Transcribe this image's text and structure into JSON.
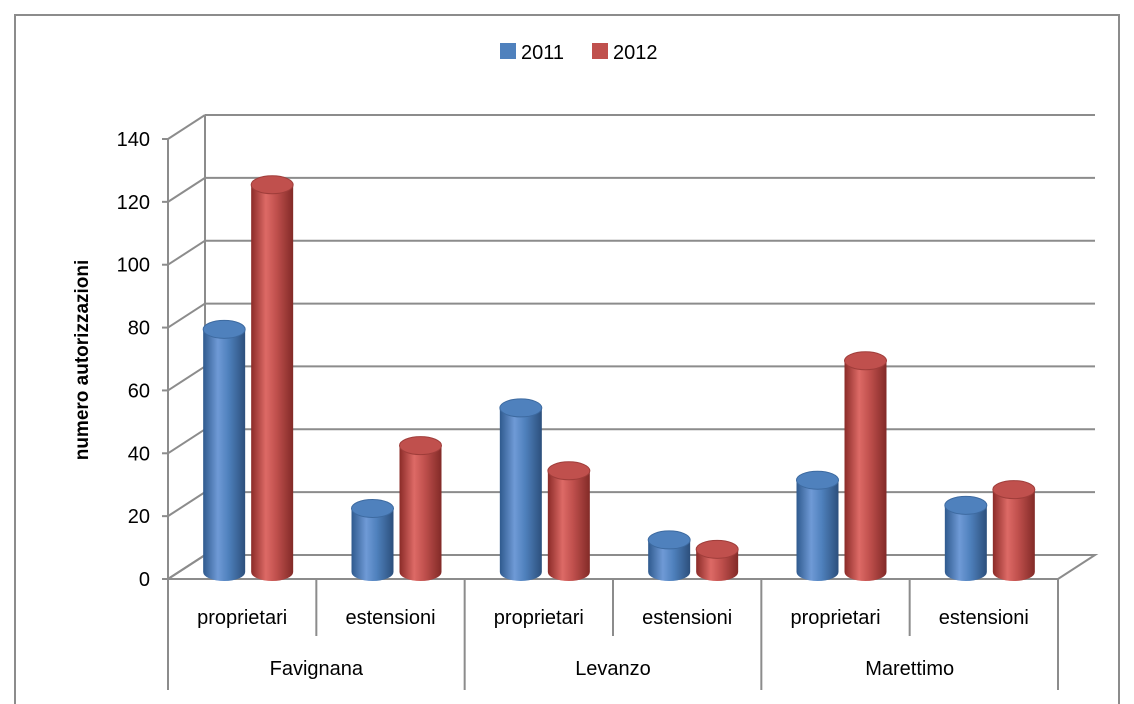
{
  "chart_data": {
    "type": "bar",
    "style": "3d-cylinder",
    "ylabel": "numero autorizzazioni",
    "ylim": [
      0,
      140
    ],
    "yticks": [
      "0",
      "20",
      "40",
      "60",
      "80",
      "100",
      "120",
      "140"
    ],
    "grid": true,
    "legend_position": "top-center",
    "categories": [
      "proprietari",
      "estensioni",
      "proprietari",
      "estensioni",
      "proprietari",
      "estensioni"
    ],
    "groups": [
      "Favignana",
      "Levanzo",
      "Marettimo"
    ],
    "series": [
      {
        "name": "2011",
        "color": "#4f81bd",
        "values": [
          76,
          19,
          51,
          9,
          28,
          20
        ]
      },
      {
        "name": "2012",
        "color": "#c0504d",
        "values": [
          122,
          39,
          31,
          6,
          66,
          25
        ]
      }
    ]
  }
}
